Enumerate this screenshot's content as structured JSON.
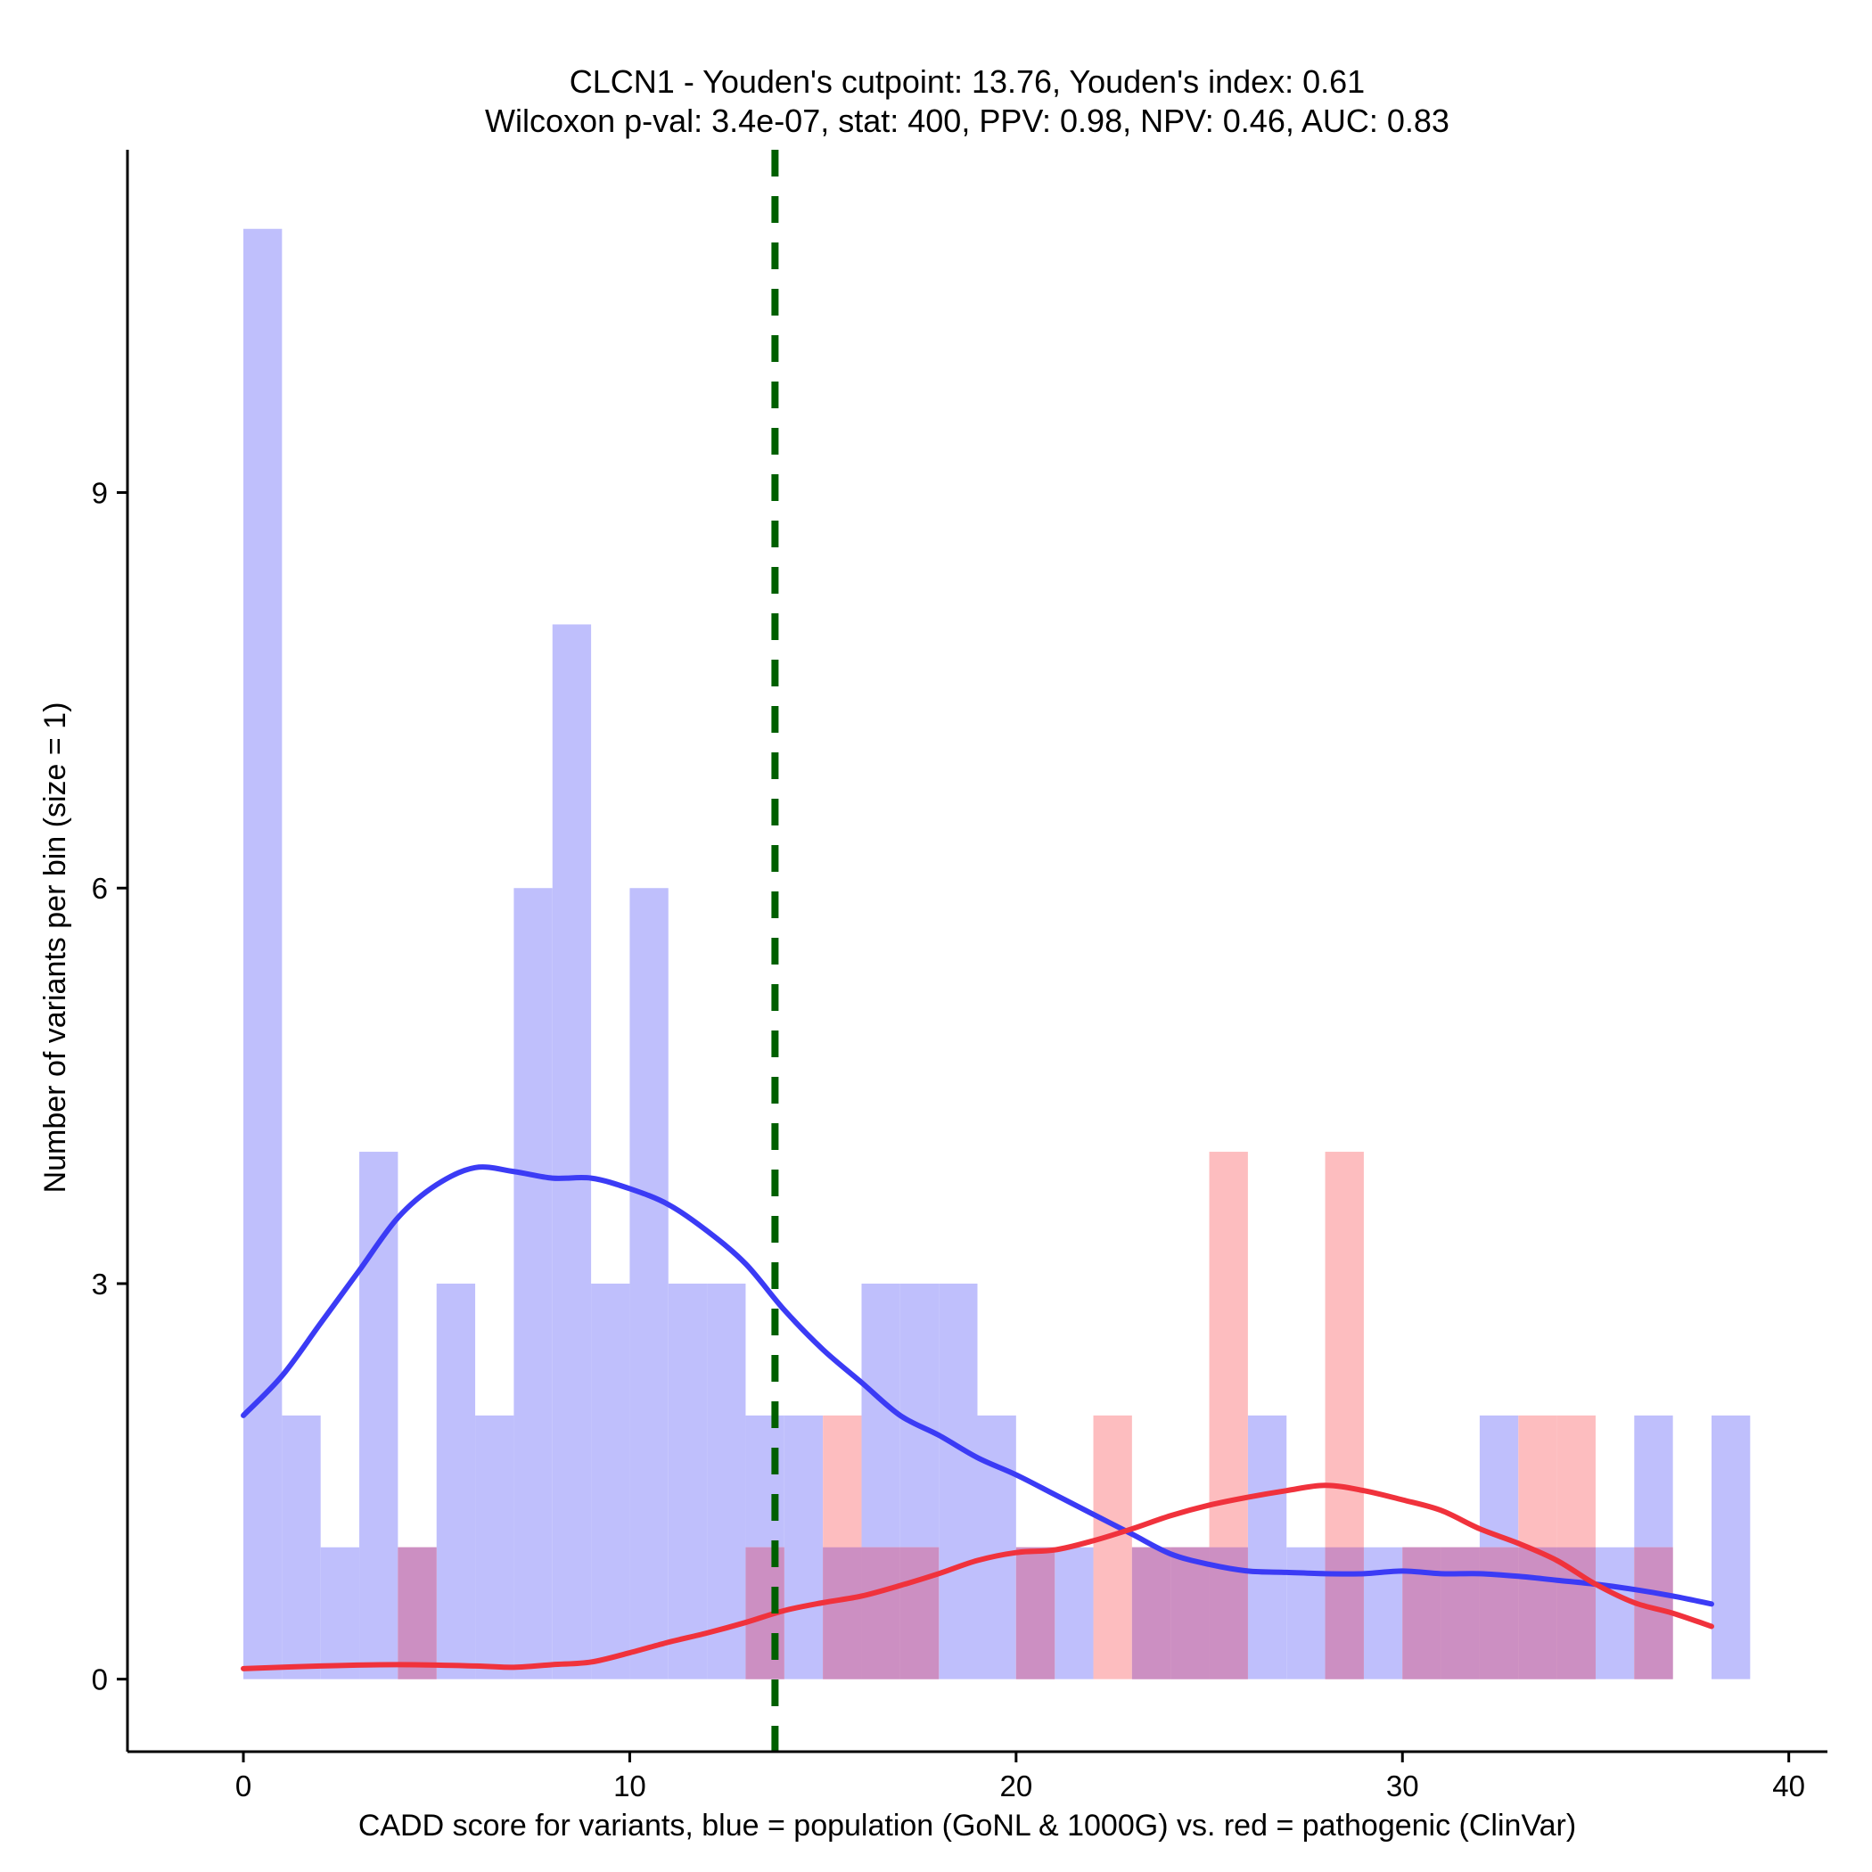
{
  "chart_data": {
    "type": "bar",
    "title": [
      "CLCN1 - Youden's cutpoint: 13.76, Youden's index: 0.61",
      "Wilcoxon p-val: 3.4e-07, stat: 400, PPV: 0.98, NPV: 0.46, AUC: 0.83"
    ],
    "xlabel": "CADD score for variants, blue = population (GoNL & 1000G) vs. red = pathogenic (ClinVar)",
    "ylabel": "Number of variants per bin (size = 1)",
    "xlim": [
      -3,
      41
    ],
    "ylim": [
      -0.55,
      11.6
    ],
    "xticks": [
      0,
      10,
      20,
      30,
      40
    ],
    "yticks": [
      0,
      3,
      6,
      9
    ],
    "bin_width": 1,
    "cutpoint": 13.76,
    "grid": false,
    "series": [
      {
        "name": "population (GoNL & 1000G)",
        "color": "#bfbffc",
        "bins": [
          {
            "x": 0,
            "count": 11
          },
          {
            "x": 1,
            "count": 2
          },
          {
            "x": 2,
            "count": 1
          },
          {
            "x": 3,
            "count": 4
          },
          {
            "x": 4,
            "count": 1
          },
          {
            "x": 5,
            "count": 3
          },
          {
            "x": 6,
            "count": 2
          },
          {
            "x": 7,
            "count": 6
          },
          {
            "x": 8,
            "count": 8
          },
          {
            "x": 9,
            "count": 3
          },
          {
            "x": 10,
            "count": 6
          },
          {
            "x": 11,
            "count": 3
          },
          {
            "x": 12,
            "count": 3
          },
          {
            "x": 13,
            "count": 2
          },
          {
            "x": 14,
            "count": 2
          },
          {
            "x": 15,
            "count": 1
          },
          {
            "x": 16,
            "count": 3
          },
          {
            "x": 17,
            "count": 3
          },
          {
            "x": 18,
            "count": 3
          },
          {
            "x": 19,
            "count": 2
          },
          {
            "x": 20,
            "count": 1
          },
          {
            "x": 21,
            "count": 1
          },
          {
            "x": 23,
            "count": 1
          },
          {
            "x": 24,
            "count": 1
          },
          {
            "x": 25,
            "count": 1
          },
          {
            "x": 26,
            "count": 2
          },
          {
            "x": 27,
            "count": 1
          },
          {
            "x": 28,
            "count": 1
          },
          {
            "x": 29,
            "count": 1
          },
          {
            "x": 30,
            "count": 1
          },
          {
            "x": 31,
            "count": 1
          },
          {
            "x": 32,
            "count": 2
          },
          {
            "x": 33,
            "count": 1
          },
          {
            "x": 34,
            "count": 1
          },
          {
            "x": 35,
            "count": 1
          },
          {
            "x": 36,
            "count": 2
          },
          {
            "x": 38,
            "count": 2
          }
        ],
        "density": [
          [
            0,
            2.0
          ],
          [
            1,
            2.3
          ],
          [
            2,
            2.7
          ],
          [
            3,
            3.1
          ],
          [
            4,
            3.5
          ],
          [
            5,
            3.75
          ],
          [
            6,
            3.88
          ],
          [
            7,
            3.85
          ],
          [
            8,
            3.8
          ],
          [
            9,
            3.8
          ],
          [
            10,
            3.72
          ],
          [
            11,
            3.6
          ],
          [
            12,
            3.4
          ],
          [
            13,
            3.15
          ],
          [
            14,
            2.8
          ],
          [
            15,
            2.5
          ],
          [
            16,
            2.25
          ],
          [
            17,
            2.0
          ],
          [
            18,
            1.85
          ],
          [
            19,
            1.68
          ],
          [
            20,
            1.55
          ],
          [
            21,
            1.4
          ],
          [
            22,
            1.25
          ],
          [
            23,
            1.1
          ],
          [
            24,
            0.95
          ],
          [
            25,
            0.87
          ],
          [
            26,
            0.82
          ],
          [
            27,
            0.81
          ],
          [
            28,
            0.8
          ],
          [
            29,
            0.8
          ],
          [
            30,
            0.82
          ],
          [
            31,
            0.8
          ],
          [
            32,
            0.8
          ],
          [
            33,
            0.78
          ],
          [
            34,
            0.75
          ],
          [
            35,
            0.72
          ],
          [
            36,
            0.68
          ],
          [
            37,
            0.63
          ],
          [
            38,
            0.57
          ]
        ]
      },
      {
        "name": "pathogenic (ClinVar)",
        "color": "#fdbdbf",
        "bins": [
          {
            "x": 4,
            "count": 1
          },
          {
            "x": 13,
            "count": 1
          },
          {
            "x": 15,
            "count": 2
          },
          {
            "x": 16,
            "count": 1
          },
          {
            "x": 17,
            "count": 1
          },
          {
            "x": 20,
            "count": 1
          },
          {
            "x": 22,
            "count": 2
          },
          {
            "x": 23,
            "count": 1
          },
          {
            "x": 24,
            "count": 1
          },
          {
            "x": 25,
            "count": 4
          },
          {
            "x": 28,
            "count": 4
          },
          {
            "x": 30,
            "count": 1
          },
          {
            "x": 31,
            "count": 1
          },
          {
            "x": 32,
            "count": 1
          },
          {
            "x": 33,
            "count": 2
          },
          {
            "x": 34,
            "count": 2
          },
          {
            "x": 36,
            "count": 1
          }
        ],
        "density": [
          [
            0,
            0.08
          ],
          [
            2,
            0.1
          ],
          [
            4,
            0.11
          ],
          [
            6,
            0.1
          ],
          [
            7,
            0.09
          ],
          [
            8,
            0.11
          ],
          [
            9,
            0.13
          ],
          [
            10,
            0.2
          ],
          [
            11,
            0.28
          ],
          [
            12,
            0.35
          ],
          [
            13,
            0.43
          ],
          [
            14,
            0.52
          ],
          [
            15,
            0.58
          ],
          [
            16,
            0.63
          ],
          [
            17,
            0.71
          ],
          [
            18,
            0.8
          ],
          [
            19,
            0.9
          ],
          [
            20,
            0.96
          ],
          [
            21,
            0.98
          ],
          [
            22,
            1.05
          ],
          [
            23,
            1.14
          ],
          [
            24,
            1.24
          ],
          [
            25,
            1.32
          ],
          [
            26,
            1.38
          ],
          [
            27,
            1.43
          ],
          [
            28,
            1.47
          ],
          [
            29,
            1.43
          ],
          [
            30,
            1.36
          ],
          [
            31,
            1.28
          ],
          [
            32,
            1.14
          ],
          [
            33,
            1.03
          ],
          [
            34,
            0.9
          ],
          [
            35,
            0.72
          ],
          [
            36,
            0.58
          ],
          [
            37,
            0.5
          ],
          [
            38,
            0.4
          ]
        ]
      }
    ],
    "styles": {
      "overlap_color": "#cc8fc2",
      "pop_line_color": "#3b3bf5",
      "path_line_color": "#f0323c",
      "cutpoint_color": "#005f00"
    }
  }
}
